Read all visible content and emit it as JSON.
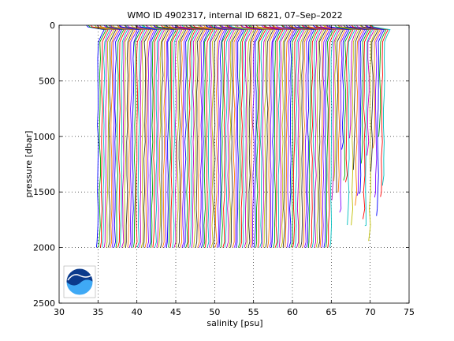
{
  "chart_data": {
    "type": "line",
    "title": "WMO ID 4902317, internal ID 6821, 07–Sep–2022",
    "xlabel": "salinity [psu]",
    "ylabel": "pressure [dbar]",
    "xlim": [
      30,
      75
    ],
    "ylim": [
      0,
      2500
    ],
    "y_reversed": true,
    "xticks": [
      "30",
      "35",
      "40",
      "45",
      "50",
      "55",
      "60",
      "65",
      "70",
      "75"
    ],
    "yticks": [
      "0",
      "500",
      "1000",
      "1500",
      "2000",
      "2500"
    ],
    "grid": true,
    "grid_style": "dotted",
    "legend": "none",
    "profiles": {
      "count": 148,
      "first_profile_salinity_at_depth": 34.9,
      "offset_per_profile_psu": 0.25,
      "surface_range_psu": [
        33.5,
        72.5
      ],
      "max_pressure_dbar": 2000
    },
    "series_colors": [
      "#0000ff",
      "#00aa00",
      "#ff0000",
      "#00bfbf",
      "#bf00bf",
      "#bfbf00",
      "#333333",
      "#ff8000",
      "#8000ff"
    ],
    "logo": "noaa-logo"
  }
}
